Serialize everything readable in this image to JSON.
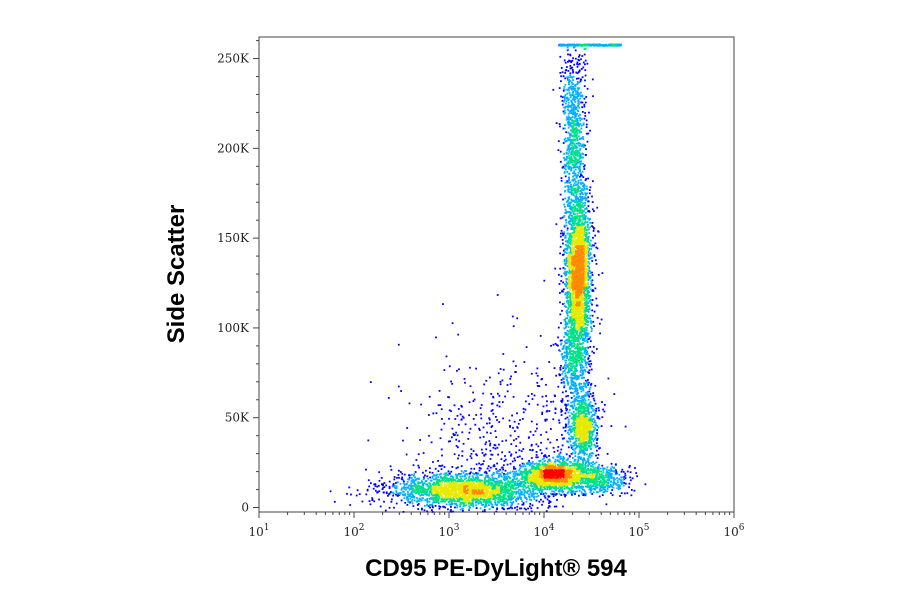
{
  "chart_data": {
    "type": "scatter",
    "subtype": "flow-cytometry density dot plot",
    "xlabel": "CD95 PE-DyLight® 594",
    "ylabel": "Side Scatter",
    "x_scale": "log",
    "x_ticks": [
      {
        "base": "10",
        "exp": "1",
        "value": 10
      },
      {
        "base": "10",
        "exp": "2",
        "value": 100
      },
      {
        "base": "10",
        "exp": "3",
        "value": 1000
      },
      {
        "base": "10",
        "exp": "4",
        "value": 10000
      },
      {
        "base": "10",
        "exp": "5",
        "value": 100000
      },
      {
        "base": "10",
        "exp": "6",
        "value": 1000000
      }
    ],
    "y_scale": "linear",
    "y_ticks": [
      {
        "label": "0",
        "value": 0
      },
      {
        "label": "50K",
        "value": 50000
      },
      {
        "label": "100K",
        "value": 100000
      },
      {
        "label": "150K",
        "value": 150000
      },
      {
        "label": "200K",
        "value": 200000
      },
      {
        "label": "250K",
        "value": 250000
      }
    ],
    "xlim": [
      10,
      1000000
    ],
    "ylim": [
      -2500,
      262000
    ],
    "grid": false,
    "legend": "none",
    "color_scale": [
      "#0000ff",
      "#00b0ff",
      "#00e08a",
      "#e8e800",
      "#ff8c00",
      "#ff0000"
    ],
    "populations": [
      {
        "x_log_center": 3.2,
        "x_log_sd": 0.42,
        "y_center": 10000,
        "y_sd": 5000,
        "count": 2200
      },
      {
        "x_log_center": 4.08,
        "x_log_sd": 0.16,
        "y_center": 19000,
        "y_sd": 4000,
        "count": 1100
      },
      {
        "x_log_center": 4.45,
        "x_log_sd": 0.22,
        "y_center": 17000,
        "y_sd": 4500,
        "count": 700
      },
      {
        "x_log_center": 4.35,
        "x_log_sd": 0.07,
        "y_center": 130000,
        "y_sd": 25000,
        "count": 2600
      },
      {
        "x_log_center": 4.4,
        "x_log_sd": 0.08,
        "y_center": 45000,
        "y_sd": 9000,
        "count": 800
      },
      {
        "x_log_center": 4.3,
        "x_log_sd": 0.06,
        "y_center": 210000,
        "y_sd": 25000,
        "count": 800
      },
      {
        "x_log_center": 4.3,
        "x_log_sd": 0.08,
        "y_center": 80000,
        "y_sd": 12000,
        "count": 400
      },
      {
        "x_log_center": 3.5,
        "x_log_sd": 0.45,
        "y_center": 40000,
        "y_sd": 25000,
        "count": 500
      }
    ],
    "saturation_line": {
      "x_log_from": 4.15,
      "x_log_to": 4.8,
      "y": 258000
    }
  }
}
